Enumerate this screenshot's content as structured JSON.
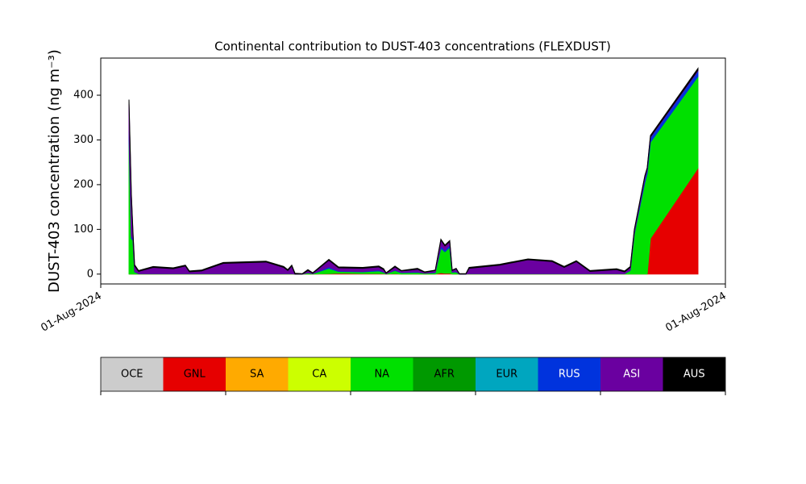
{
  "chart_data": {
    "type": "stacked-area",
    "title": "Continental contribution to DUST-403 concentrations (FLEXDUST)",
    "y_label": "DUST-403 concentration (ng m⁻³)",
    "xlim": [
      0,
      100
    ],
    "xticks": [
      {
        "value": 0,
        "label": "01-Aug-2024"
      },
      {
        "value": 100,
        "label": "01-Aug-2024"
      }
    ],
    "ylim": [
      -22,
      483
    ],
    "yticks": [
      0,
      100,
      200,
      300,
      400
    ],
    "x": [
      4.52,
      4.9,
      5.16,
      5.42,
      6.06,
      8.39,
      11.61,
      13.55,
      14.19,
      16.13,
      19.61,
      26.45,
      29.29,
      29.94,
      30.58,
      31.1,
      32.26,
      33.16,
      33.94,
      36.52,
      38.06,
      41.94,
      44.52,
      45.29,
      45.68,
      47.1,
      48.13,
      50.71,
      51.87,
      53.55,
      54.45,
      55.1,
      55.87,
      56.26,
      56.9,
      57.42,
      58.45,
      58.97,
      63.87,
      68.39,
      72.26,
      74.19,
      76.13,
      78.32,
      82.58,
      83.87,
      84.77,
      85.42,
      87.1,
      87.48,
      88,
      95.61
    ],
    "series": [
      {
        "name": "OCE",
        "color": "#cccccc",
        "values": [
          0,
          0,
          0,
          0,
          0,
          0,
          0,
          0,
          0,
          0,
          0,
          0,
          0,
          0,
          0,
          0,
          0,
          0,
          0,
          0,
          0,
          0,
          0,
          0,
          0,
          0,
          0,
          0,
          0,
          0,
          0,
          0,
          0,
          0,
          0,
          0,
          0,
          0,
          0,
          0,
          0,
          0,
          0,
          0,
          0,
          0,
          0,
          0,
          0,
          0,
          0,
          0
        ]
      },
      {
        "name": "GNL",
        "color": "#e60000",
        "values": [
          0,
          0,
          0,
          0,
          0,
          0,
          0,
          0,
          0,
          0,
          0,
          0,
          0,
          0,
          0,
          0,
          0,
          0,
          0,
          1,
          2,
          1,
          1,
          1,
          0,
          1,
          0,
          0,
          0,
          0,
          3,
          2,
          2,
          0,
          0,
          0,
          0,
          0,
          0,
          0,
          0,
          0,
          0,
          0,
          0,
          0,
          0,
          0,
          0,
          0,
          80,
          237
        ]
      },
      {
        "name": "SA",
        "color": "#ffaa00",
        "values": [
          0,
          0,
          0,
          0,
          0,
          0,
          0,
          0,
          0,
          0,
          0,
          0,
          0,
          0,
          0,
          0,
          0,
          0,
          0,
          0,
          0,
          0,
          0,
          0,
          0,
          0,
          0,
          0,
          0,
          0,
          0,
          0,
          0,
          0,
          0,
          0,
          0,
          0,
          0,
          0,
          0,
          0,
          0,
          0,
          0,
          0,
          0,
          0,
          0,
          0,
          0,
          0
        ]
      },
      {
        "name": "CA",
        "color": "#ccff00",
        "values": [
          0,
          0,
          0,
          0,
          0,
          0,
          0,
          0,
          0,
          0,
          0,
          0,
          0,
          0,
          0,
          0,
          0,
          0,
          0,
          0,
          0,
          0,
          0,
          0,
          0,
          0,
          0,
          0,
          0,
          0,
          0,
          0,
          0,
          0,
          0,
          0,
          0,
          0,
          0,
          0,
          0,
          0,
          0,
          0,
          0,
          0,
          0,
          0,
          0,
          0,
          0,
          0
        ]
      },
      {
        "name": "NA",
        "color": "#00e000",
        "values": [
          300,
          80,
          75,
          5,
          1,
          1,
          1,
          1,
          1,
          1,
          1,
          1,
          1,
          1,
          1,
          0,
          0,
          3,
          1,
          12,
          4,
          4,
          6,
          3,
          1,
          7,
          3,
          4,
          2,
          3,
          55,
          48,
          58,
          4,
          5,
          0,
          0,
          1,
          1,
          1,
          1,
          1,
          1,
          1,
          1,
          1,
          8,
          90,
          205,
          225,
          215,
          205
        ]
      },
      {
        "name": "AFR",
        "color": "#009900",
        "values": [
          0,
          0,
          0,
          0,
          0,
          0,
          0,
          0,
          0,
          0,
          0,
          0,
          0,
          0,
          0,
          0,
          0,
          0,
          0,
          0,
          0,
          0,
          0,
          0,
          0,
          0,
          0,
          0,
          0,
          0,
          0,
          0,
          0,
          0,
          0,
          0,
          0,
          0,
          0,
          0,
          0,
          0,
          0,
          0,
          0,
          0,
          0,
          0,
          0,
          0,
          0,
          0
        ]
      },
      {
        "name": "EUR",
        "color": "#00a6bf",
        "values": [
          0,
          0,
          0,
          0,
          0,
          0,
          0,
          0,
          0,
          0,
          0,
          0,
          0,
          0,
          0,
          0,
          0,
          0,
          0,
          0,
          0,
          0,
          0,
          0,
          0,
          0,
          0,
          0,
          0,
          0,
          0,
          0,
          0,
          0,
          0,
          0,
          0,
          0,
          0,
          0,
          0,
          0,
          0,
          0,
          0,
          0,
          0,
          0,
          0,
          0,
          0,
          0
        ]
      },
      {
        "name": "RUS",
        "color": "#0033dd",
        "values": [
          20,
          5,
          3,
          1,
          0,
          0,
          0,
          0,
          0,
          0,
          0,
          0,
          0,
          0,
          0,
          0,
          0,
          0,
          0,
          3,
          1,
          1,
          2,
          1,
          0,
          1,
          1,
          1,
          0,
          1,
          5,
          4,
          5,
          1,
          1,
          0,
          0,
          0,
          0,
          0,
          0,
          0,
          0,
          0,
          0,
          0,
          1,
          3,
          8,
          8,
          10,
          12
        ]
      },
      {
        "name": "ASI",
        "color": "#6a00a0",
        "values": [
          60,
          90,
          12,
          12,
          5,
          14,
          11,
          17,
          4,
          6,
          23,
          26,
          14,
          7,
          17,
          0,
          0,
          5,
          1,
          15,
          7,
          7,
          7,
          5,
          1,
          7,
          3,
          6,
          2,
          4,
          13,
          9,
          8,
          3,
          6,
          0,
          0,
          12,
          19,
          31,
          27,
          14,
          27,
          5,
          9,
          4,
          6,
          5,
          5,
          3,
          2,
          2
        ]
      },
      {
        "name": "AUS",
        "color": "#000000",
        "values": [
          10,
          5,
          5,
          3,
          2,
          2,
          2,
          2,
          2,
          2,
          2,
          2,
          2,
          2,
          2,
          2,
          1,
          2,
          1,
          2,
          2,
          2,
          2,
          2,
          1,
          2,
          1,
          2,
          1,
          1,
          2,
          2,
          2,
          1,
          1,
          1,
          1,
          2,
          2,
          2,
          2,
          2,
          2,
          2,
          2,
          2,
          2,
          2,
          2,
          2,
          3,
          4
        ]
      }
    ]
  }
}
